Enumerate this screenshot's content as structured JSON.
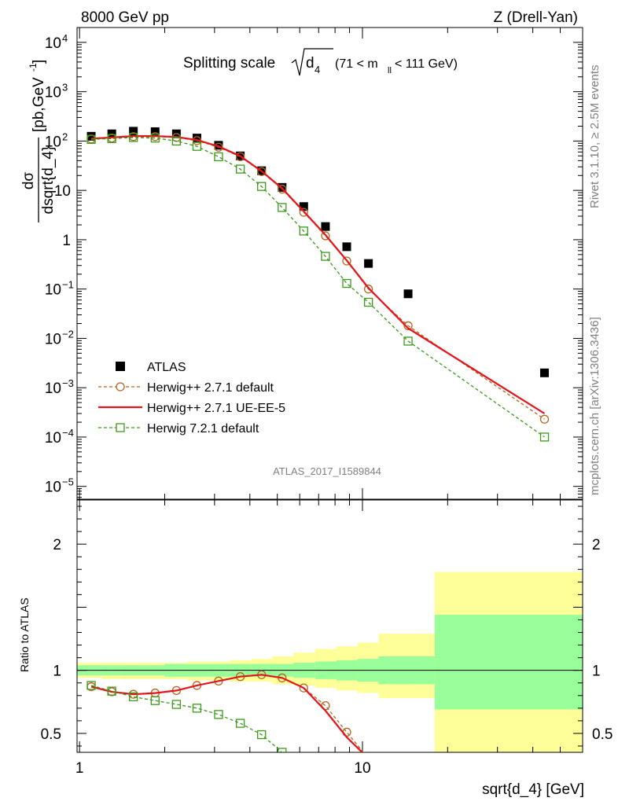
{
  "header": {
    "left": "8000 GeV pp",
    "right": "Z (Drell-Yan)"
  },
  "plot_title": {
    "main": "Splitting scale",
    "sqrt_arg": "d",
    "sqrt_sub": "4",
    "range_pre": "(71 < m",
    "range_sub": "ll",
    "range_post": " < 111 GeV)"
  },
  "y_label": {
    "num": "dσ",
    "den": "dsqrt{d_4}",
    "unit": "[pb,GeV",
    "unit_sup": "-1",
    "unit_end": "]"
  },
  "side_labels": {
    "rivet": "Rivet 3.1.10, ≥ 2.5M events",
    "mcplots": "mcplots.cern.ch [arXiv:1306.3436]"
  },
  "analysis_tag": "ATLAS_2017_I1589844",
  "ratio_ylabel": "Ratio to ATLAS",
  "x_label": "sqrt{d_4} [GeV]",
  "legend": [
    {
      "label": "ATLAS",
      "color": "#000000",
      "marker": "square-filled"
    },
    {
      "label": "Herwig++ 2.7.1 default",
      "color": "#b5651d",
      "marker": "circle-open",
      "dash": true
    },
    {
      "label": "Herwig++ 2.7.1 UE-EE-5",
      "color": "#e4141b",
      "marker": "line"
    },
    {
      "label": "Herwig 7.2.1 default",
      "color": "#3a9a1a",
      "marker": "square-open",
      "dash": true
    }
  ],
  "main_ticks": {
    "y": [
      {
        "value": 10000,
        "mant": "10",
        "exp": "4"
      },
      {
        "value": 1000,
        "mant": "10",
        "exp": "3"
      },
      {
        "value": 100,
        "mant": "10",
        "exp": "2"
      },
      {
        "value": 10,
        "mant": "10",
        "exp": ""
      },
      {
        "value": 1,
        "mant": "1",
        "exp": ""
      },
      {
        "value": 0.1,
        "mant": "10",
        "exp": "−1"
      },
      {
        "value": 0.01,
        "mant": "10",
        "exp": "−2"
      },
      {
        "value": 0.001,
        "mant": "10",
        "exp": "−3"
      },
      {
        "value": 0.0001,
        "mant": "10",
        "exp": "−4"
      },
      {
        "value": 1e-05,
        "mant": "10",
        "exp": "−5"
      }
    ]
  },
  "ratio_ticks": {
    "y": [
      {
        "value": 2,
        "label": "2"
      },
      {
        "value": 1,
        "label": "1"
      },
      {
        "value": 0.5,
        "label": "0.5"
      }
    ],
    "x": [
      {
        "value": 1,
        "label": "1"
      },
      {
        "value": 10,
        "label": "10"
      }
    ]
  },
  "chart_data": [
    {
      "type": "scatter",
      "title": "Splitting scale √d4 (71 < m_ll < 111 GeV)",
      "xlabel": "sqrt{d_4} [GeV]",
      "ylabel": "dσ/dsqrt{d_4} [pb,GeV^-1]",
      "xscale": "log",
      "yscale": "log",
      "xlim": [
        0.98,
        60
      ],
      "ylim": [
        5.5e-06,
        20000
      ],
      "legend_position": "lower-left",
      "series": [
        {
          "name": "ATLAS",
          "style": "markers",
          "x": [
            1.1,
            1.3,
            1.55,
            1.85,
            2.2,
            2.6,
            3.1,
            3.7,
            4.4,
            5.2,
            6.2,
            7.4,
            8.8,
            10.5,
            14.5,
            44
          ],
          "y": [
            125,
            140,
            158,
            155,
            140,
            115,
            82,
            50,
            25,
            11.5,
            4.7,
            1.85,
            0.72,
            0.33,
            0.08,
            0.002
          ]
        },
        {
          "name": "Herwig++ 2.7.1 default",
          "style": "dashed-circles",
          "x": [
            1.1,
            1.3,
            1.55,
            1.85,
            2.2,
            2.6,
            3.1,
            3.7,
            4.4,
            5.2,
            6.2,
            7.4,
            8.8,
            10.5,
            14.5,
            44
          ],
          "y": [
            110,
            115,
            123,
            123,
            118,
            102,
            75,
            48,
            24,
            10.6,
            3.6,
            1.2,
            0.37,
            0.1,
            0.018,
            0.00023
          ]
        },
        {
          "name": "Herwig++ 2.7.1 UE-EE-5",
          "style": "solid",
          "x": [
            1.1,
            1.3,
            1.55,
            1.85,
            2.2,
            2.6,
            3.1,
            3.7,
            4.4,
            5.2,
            6.2,
            7.4,
            8.8,
            10.5,
            14.5,
            44
          ],
          "y": [
            112,
            118,
            126,
            126,
            121,
            105,
            78,
            49.5,
            24.5,
            11,
            3.75,
            1.25,
            0.38,
            0.105,
            0.016,
            0.0003
          ]
        },
        {
          "name": "Herwig 7.2.1 default",
          "style": "dashed-squares",
          "x": [
            1.1,
            1.3,
            1.55,
            1.85,
            2.2,
            2.6,
            3.1,
            3.7,
            4.4,
            5.2,
            6.2,
            7.4,
            8.8,
            10.5,
            14.5,
            44
          ],
          "y": [
            108,
            112,
            118,
            115,
            100,
            78,
            48,
            27,
            12,
            4.5,
            1.5,
            0.46,
            0.13,
            0.054,
            0.0088,
            0.0001
          ]
        }
      ]
    },
    {
      "type": "line",
      "ylabel": "Ratio to ATLAS",
      "xlabel": "sqrt{d_4} [GeV]",
      "xscale": "log",
      "xlim": [
        0.98,
        60
      ],
      "ylim": [
        0.35,
        2.35
      ],
      "reference_line": 1,
      "bands": {
        "bins": [
          0.98,
          1.2,
          1.4,
          1.7,
          2.0,
          2.4,
          2.85,
          3.4,
          4.05,
          4.8,
          5.7,
          6.8,
          8.1,
          9.6,
          11.4,
          18,
          60
        ],
        "inner": [
          [
            0.96,
            1.04
          ],
          [
            0.96,
            1.04
          ],
          [
            0.96,
            1.04
          ],
          [
            0.96,
            1.04
          ],
          [
            0.95,
            1.05
          ],
          [
            0.95,
            1.05
          ],
          [
            0.95,
            1.05
          ],
          [
            0.95,
            1.05
          ],
          [
            0.95,
            1.05
          ],
          [
            0.95,
            1.05
          ],
          [
            0.94,
            1.06
          ],
          [
            0.93,
            1.07
          ],
          [
            0.92,
            1.08
          ],
          [
            0.91,
            1.09
          ],
          [
            0.89,
            1.11
          ],
          [
            0.69,
            1.44
          ]
        ],
        "outer": [
          [
            0.94,
            1.06
          ],
          [
            0.93,
            1.06
          ],
          [
            0.93,
            1.06
          ],
          [
            0.93,
            1.06
          ],
          [
            0.93,
            1.06
          ],
          [
            0.92,
            1.07
          ],
          [
            0.92,
            1.07
          ],
          [
            0.91,
            1.08
          ],
          [
            0.91,
            1.09
          ],
          [
            0.89,
            1.11
          ],
          [
            0.88,
            1.14
          ],
          [
            0.86,
            1.17
          ],
          [
            0.84,
            1.19
          ],
          [
            0.82,
            1.22
          ],
          [
            0.78,
            1.29
          ],
          [
            0.35,
            1.78
          ]
        ]
      },
      "series": [
        {
          "name": "Herwig++ 2.7.1 default",
          "x": [
            1.1,
            1.3,
            1.55,
            1.85,
            2.2,
            2.6,
            3.1,
            3.7,
            4.4,
            5.2,
            6.2,
            7.4,
            8.8,
            10.5
          ],
          "y": [
            0.87,
            0.83,
            0.81,
            0.82,
            0.84,
            0.88,
            0.915,
            0.95,
            0.965,
            0.94,
            0.86,
            0.72,
            0.51,
            0.3
          ]
        },
        {
          "name": "Herwig++ 2.7.1 UE-EE-5",
          "x": [
            1.1,
            1.3,
            1.55,
            1.85,
            2.2,
            2.6,
            3.1,
            3.7,
            4.4,
            5.2,
            6.2,
            7.4,
            8.8,
            10.5
          ],
          "y": [
            0.87,
            0.83,
            0.81,
            0.82,
            0.84,
            0.88,
            0.915,
            0.95,
            0.965,
            0.94,
            0.86,
            0.68,
            0.47,
            0.3
          ]
        },
        {
          "name": "Herwig 7.2.1 default",
          "x": [
            1.1,
            1.3,
            1.55,
            1.85,
            2.2,
            2.6,
            3.1,
            3.7,
            4.4,
            5.2,
            6.2
          ],
          "y": [
            0.88,
            0.835,
            0.79,
            0.76,
            0.73,
            0.7,
            0.65,
            0.58,
            0.49,
            0.35,
            0.25
          ]
        }
      ]
    }
  ]
}
